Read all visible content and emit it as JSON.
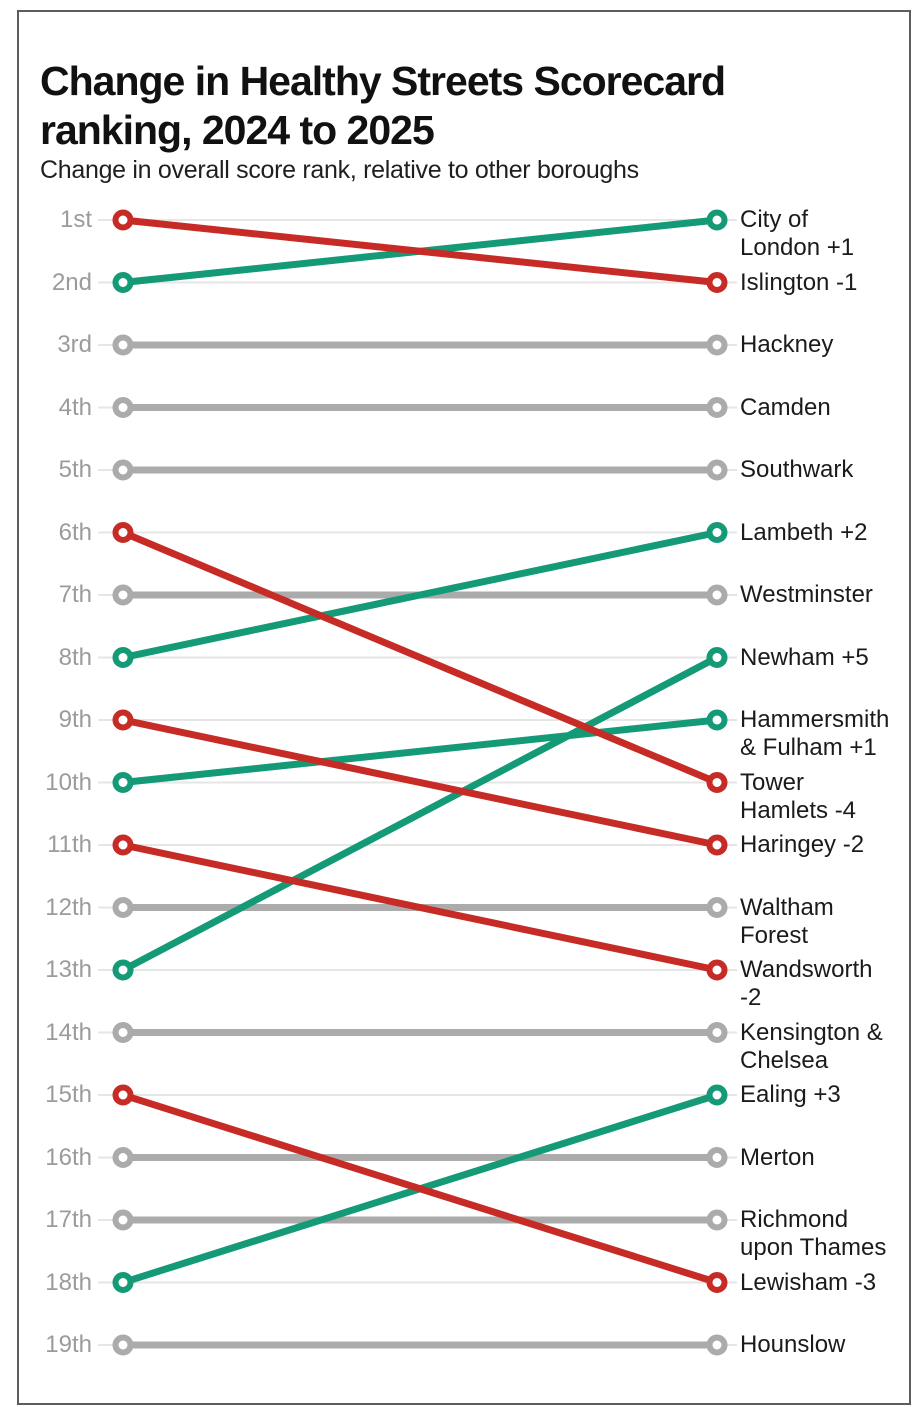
{
  "title": "Change in Healthy Streets Scorecard\nranking, 2024 to 2025",
  "subtitle": "Change in overall score rank, relative to other boroughs",
  "colors": {
    "up": "#149a76",
    "down": "#c62b26",
    "same": "#ababab",
    "gridline": "#e6e6e6",
    "rank_label": "#9b9b9b",
    "borough_label": "#1b1b1b",
    "card_border": "#5c5c5c"
  },
  "chart_data": {
    "type": "line",
    "subtype": "slope-bump-ranking",
    "x": [
      "2024",
      "2025"
    ],
    "ranks": [
      "1st",
      "2nd",
      "3rd",
      "4th",
      "5th",
      "6th",
      "7th",
      "8th",
      "9th",
      "10th",
      "11th",
      "12th",
      "13th",
      "14th",
      "15th",
      "16th",
      "17th",
      "18th",
      "19th"
    ],
    "rank_axis_range": [
      1,
      19
    ],
    "grid": true,
    "legend": false,
    "series": [
      {
        "name": "City of London",
        "rank_2024": 2,
        "rank_2025": 1,
        "change": 1,
        "direction": "up",
        "label": "City of\nLondon +1"
      },
      {
        "name": "Islington",
        "rank_2024": 1,
        "rank_2025": 2,
        "change": -1,
        "direction": "down",
        "label": "Islington -1"
      },
      {
        "name": "Hackney",
        "rank_2024": 3,
        "rank_2025": 3,
        "change": 0,
        "direction": "same",
        "label": "Hackney"
      },
      {
        "name": "Camden",
        "rank_2024": 4,
        "rank_2025": 4,
        "change": 0,
        "direction": "same",
        "label": "Camden"
      },
      {
        "name": "Southwark",
        "rank_2024": 5,
        "rank_2025": 5,
        "change": 0,
        "direction": "same",
        "label": "Southwark"
      },
      {
        "name": "Lambeth",
        "rank_2024": 8,
        "rank_2025": 6,
        "change": 2,
        "direction": "up",
        "label": "Lambeth +2"
      },
      {
        "name": "Westminster",
        "rank_2024": 7,
        "rank_2025": 7,
        "change": 0,
        "direction": "same",
        "label": "Westminster"
      },
      {
        "name": "Newham",
        "rank_2024": 13,
        "rank_2025": 8,
        "change": 5,
        "direction": "up",
        "label": "Newham +5"
      },
      {
        "name": "Hammersmith & Fulham",
        "rank_2024": 10,
        "rank_2025": 9,
        "change": 1,
        "direction": "up",
        "label": "Hammersmith\n& Fulham +1"
      },
      {
        "name": "Tower Hamlets",
        "rank_2024": 6,
        "rank_2025": 10,
        "change": -4,
        "direction": "down",
        "label": "Tower\nHamlets -4"
      },
      {
        "name": "Haringey",
        "rank_2024": 9,
        "rank_2025": 11,
        "change": -2,
        "direction": "down",
        "label": "Haringey -2"
      },
      {
        "name": "Waltham Forest",
        "rank_2024": 12,
        "rank_2025": 12,
        "change": 0,
        "direction": "same",
        "label": "Waltham\nForest"
      },
      {
        "name": "Wandsworth",
        "rank_2024": 11,
        "rank_2025": 13,
        "change": -2,
        "direction": "down",
        "label": "Wandsworth\n-2"
      },
      {
        "name": "Kensington & Chelsea",
        "rank_2024": 14,
        "rank_2025": 14,
        "change": 0,
        "direction": "same",
        "label": "Kensington &\nChelsea"
      },
      {
        "name": "Ealing",
        "rank_2024": 18,
        "rank_2025": 15,
        "change": 3,
        "direction": "up",
        "label": "Ealing +3"
      },
      {
        "name": "Merton",
        "rank_2024": 16,
        "rank_2025": 16,
        "change": 0,
        "direction": "same",
        "label": "Merton"
      },
      {
        "name": "Richmond upon Thames",
        "rank_2024": 17,
        "rank_2025": 17,
        "change": 0,
        "direction": "same",
        "label": "Richmond\nupon Thames"
      },
      {
        "name": "Lewisham",
        "rank_2024": 15,
        "rank_2025": 18,
        "change": -3,
        "direction": "down",
        "label": "Lewisham -3"
      },
      {
        "name": "Hounslow",
        "rank_2024": 19,
        "rank_2025": 19,
        "change": 0,
        "direction": "same",
        "label": "Hounslow"
      }
    ]
  }
}
